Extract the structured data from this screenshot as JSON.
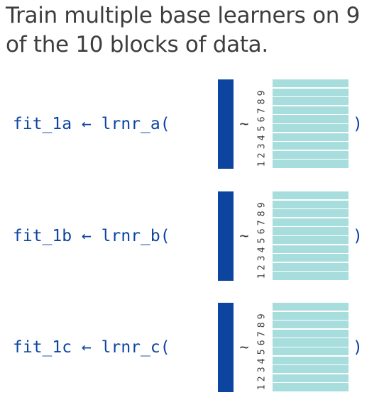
{
  "title": "Train multiple base learners on 9 of the 10 blocks of data.",
  "rows": [
    {
      "fit": "fit_1a",
      "arrow": "←",
      "learner": "lrnr_a",
      "open": "(",
      "tilde": "~",
      "digits": [
        "1",
        "2",
        "3",
        "4",
        "5",
        "6",
        "7",
        "8",
        "9"
      ],
      "close": ")"
    },
    {
      "fit": "fit_1b",
      "arrow": "←",
      "learner": "lrnr_b",
      "open": "(",
      "tilde": "~",
      "digits": [
        "1",
        "2",
        "3",
        "4",
        "5",
        "6",
        "7",
        "8",
        "9"
      ],
      "close": ")"
    },
    {
      "fit": "fit_1c",
      "arrow": "←",
      "learner": "lrnr_c",
      "open": "(",
      "tilde": "~",
      "digits": [
        "1",
        "2",
        "3",
        "4",
        "5",
        "6",
        "7",
        "8",
        "9"
      ],
      "close": ")"
    }
  ],
  "colors": {
    "code": "#0c44a0",
    "outcome_bar": "#0c44a0",
    "data_block": "#a7dedd",
    "text": "#3d3d3d"
  }
}
